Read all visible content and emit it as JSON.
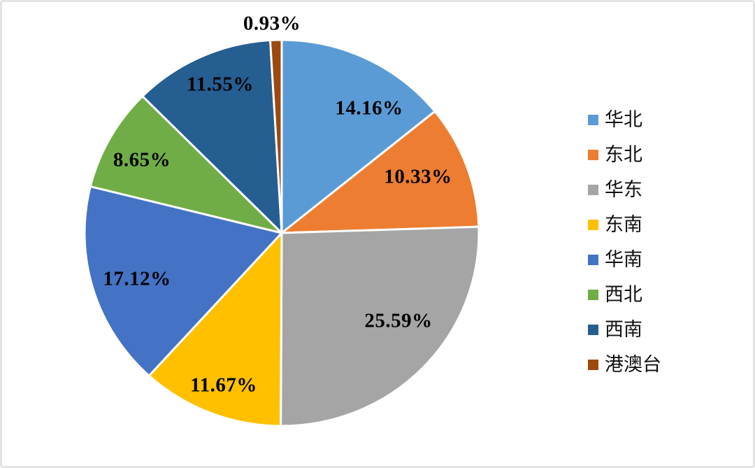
{
  "chart_data": {
    "type": "pie",
    "title": "",
    "categories": [
      "华北",
      "东北",
      "华东",
      "东南",
      "华南",
      "西北",
      "西南",
      "港澳台"
    ],
    "values": [
      14.16,
      10.33,
      25.59,
      11.67,
      17.12,
      8.65,
      11.55,
      0.93
    ],
    "data_labels": [
      "14.16%",
      "10.33%",
      "25.59%",
      "11.67%",
      "17.12%",
      "8.65%",
      "11.55%",
      "0.93%"
    ],
    "colors": [
      "#5B9BD5",
      "#ED7D31",
      "#A5A5A5",
      "#FFC000",
      "#4472C4",
      "#70AD47",
      "#255E91",
      "#9E480E"
    ],
    "slice_border_color": "#FFFFFF",
    "label_color": "#000000",
    "background": "#FFFFFF",
    "legend_position": "right",
    "start_angle_deg": 0,
    "direction": "clockwise"
  }
}
